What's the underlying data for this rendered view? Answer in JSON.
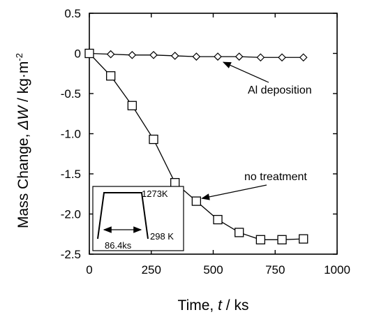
{
  "chart_data": {
    "type": "line",
    "xlabel": {
      "prefix": "Time, ",
      "var": "t",
      "suffix": " / ks"
    },
    "ylabel": {
      "prefix": "Mass Change, ",
      "var": "ΔW",
      "suffix": " / kg·m",
      "sup": "-2"
    },
    "xlim": [
      0,
      1000
    ],
    "ylim": [
      -2.5,
      0.5
    ],
    "xticks": [
      0,
      250,
      500,
      750,
      1000
    ],
    "yticks": [
      0.5,
      0,
      -0.5,
      -1.0,
      -1.5,
      -2.0,
      -2.5
    ],
    "xtick_labels": [
      "0",
      "250",
      "500",
      "750",
      "1000"
    ],
    "ytick_labels": [
      "0.5",
      "0",
      "-0.5",
      "-1.0",
      "-1.5",
      "-2.0",
      "-2.5"
    ],
    "grid": false,
    "series": [
      {
        "name": "Al deposition",
        "marker": "diamond",
        "x": [
          0,
          86.4,
          172.8,
          259.2,
          345.6,
          432,
          518.4,
          604.8,
          691.2,
          777.6,
          864
        ],
        "y": [
          0,
          -0.01,
          -0.02,
          -0.02,
          -0.03,
          -0.04,
          -0.04,
          -0.04,
          -0.05,
          -0.05,
          -0.05
        ]
      },
      {
        "name": "no treatment",
        "marker": "square",
        "x": [
          0,
          86.4,
          172.8,
          259.2,
          345.6,
          432,
          518.4,
          604.8,
          691.2,
          777.6,
          864
        ],
        "y": [
          0,
          -0.28,
          -0.65,
          -1.07,
          -1.61,
          -1.84,
          -2.07,
          -2.23,
          -2.32,
          -2.32,
          -2.31
        ]
      }
    ],
    "annotations": [
      {
        "text": "Al deposition",
        "target_series": "Al deposition"
      },
      {
        "text": "no treatment",
        "target_series": "no treatment"
      }
    ],
    "inset": {
      "temp_high": "1273K",
      "temp_low": "298 K",
      "duration": "86.4ks"
    }
  }
}
